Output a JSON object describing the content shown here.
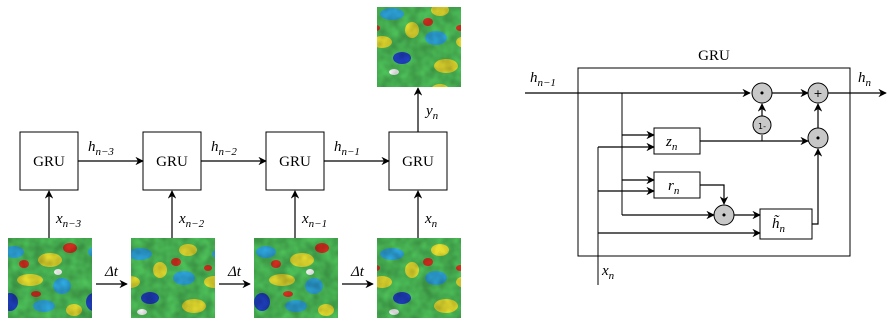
{
  "unrolled": {
    "cells": [
      {
        "label": "GRU",
        "input": "x",
        "input_sub": "n−3"
      },
      {
        "label": "GRU",
        "input": "x",
        "input_sub": "n−2"
      },
      {
        "label": "GRU",
        "input": "x",
        "input_sub": "n−1"
      },
      {
        "label": "GRU",
        "input": "x",
        "input_sub": "n"
      }
    ],
    "hidden": [
      {
        "name": "h",
        "sub": "n−3"
      },
      {
        "name": "h",
        "sub": "n−2"
      },
      {
        "name": "h",
        "sub": "n−1"
      }
    ],
    "output": {
      "name": "y",
      "sub": "n"
    },
    "time_step": "Δt"
  },
  "detail": {
    "title": "GRU",
    "h_in": {
      "name": "h",
      "sub": "n−1"
    },
    "h_out": {
      "name": "h",
      "sub": "n"
    },
    "x_in": {
      "name": "x",
      "sub": "n"
    },
    "z": {
      "name": "z",
      "sub": "n"
    },
    "r": {
      "name": "r",
      "sub": "n"
    },
    "h_tilde": {
      "name": "h̃",
      "sub": "n"
    },
    "one_minus": "1-",
    "plus": "+",
    "dot": "•"
  },
  "icons": [
    "flow-field-image",
    "multiply-gate-icon",
    "add-gate-icon"
  ],
  "colors": {
    "gate": "#c8c8c8",
    "line": "#000000"
  }
}
